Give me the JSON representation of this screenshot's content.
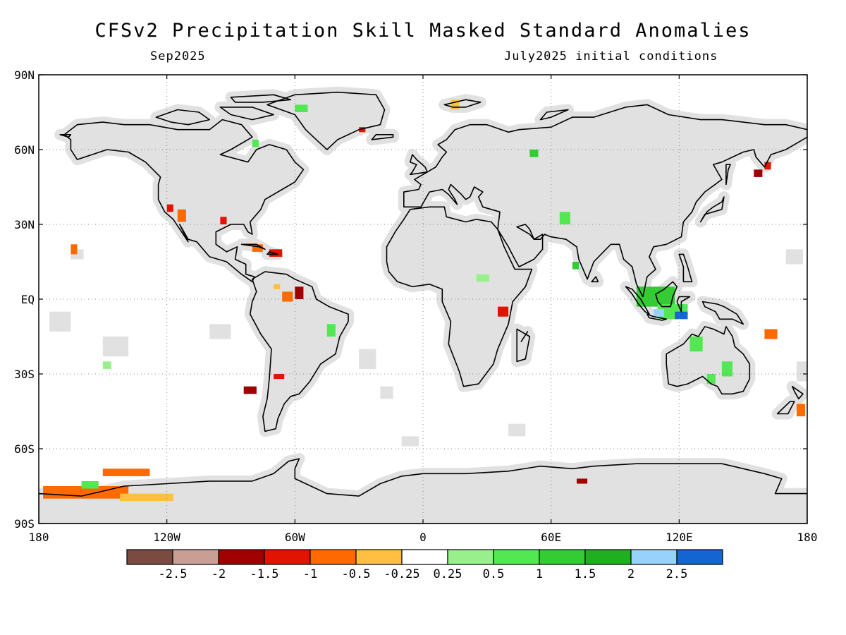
{
  "title": "CFSv2 Precipitation Skill Masked Standard Anomalies",
  "subtitle_left": "Sep2025",
  "subtitle_right": "July2025 initial conditions",
  "map": {
    "projection": "equirectangular",
    "lon_range": [
      -180,
      180
    ],
    "lat_range": [
      -90,
      90
    ],
    "grid": "dotted",
    "skill_mask_color": "#e1e1e1",
    "coastline_color": "#000000",
    "lat_labels": [
      {
        "lat": 90,
        "text": "90N"
      },
      {
        "lat": 60,
        "text": "60N"
      },
      {
        "lat": 30,
        "text": "30N"
      },
      {
        "lat": 0,
        "text": "EQ"
      },
      {
        "lat": -30,
        "text": "30S"
      },
      {
        "lat": -60,
        "text": "60S"
      },
      {
        "lat": -90,
        "text": "90S"
      }
    ],
    "lon_labels": [
      {
        "lon": -180,
        "text": "180"
      },
      {
        "lon": -120,
        "text": "120W"
      },
      {
        "lon": -60,
        "text": "60W"
      },
      {
        "lon": 0,
        "text": "0"
      },
      {
        "lon": 60,
        "text": "60E"
      },
      {
        "lon": 120,
        "text": "120E"
      },
      {
        "lon": 180,
        "text": "180"
      }
    ]
  },
  "colorbar": {
    "colors": [
      "#7b4b42",
      "#c99e95",
      "#a00000",
      "#e01400",
      "#ff6a00",
      "#ffbf40",
      "#ffffff",
      "#98f08c",
      "#52e852",
      "#33cc33",
      "#1eb01e",
      "#96d2fa",
      "#1464d2"
    ],
    "labels": [
      "-2.5",
      "-2",
      "-1.5",
      "-1",
      "-0.5",
      "-0.25",
      "0.25",
      "0.5",
      "1",
      "1.5",
      "2",
      "2.5"
    ]
  },
  "anomaly_regions": [
    {
      "lon": 155,
      "lat": 52,
      "w": 4,
      "h": 3,
      "level": 2
    },
    {
      "lon": 160,
      "lat": 55,
      "w": 3,
      "h": 3,
      "level": 3
    },
    {
      "lon": -115,
      "lat": 36,
      "w": 4,
      "h": 5,
      "level": 4
    },
    {
      "lon": -120,
      "lat": 38,
      "w": 3,
      "h": 3,
      "level": 3
    },
    {
      "lon": -95,
      "lat": 33,
      "w": 3,
      "h": 3,
      "level": 3
    },
    {
      "lon": -165,
      "lat": 22,
      "w": 3,
      "h": 4,
      "level": 4
    },
    {
      "lon": -80,
      "lat": 22,
      "w": 5,
      "h": 3,
      "level": 4
    },
    {
      "lon": -72,
      "lat": 20,
      "w": 6,
      "h": 3,
      "level": 3
    },
    {
      "lon": -60,
      "lat": 5,
      "w": 4,
      "h": 5,
      "level": 2
    },
    {
      "lon": -66,
      "lat": 3,
      "w": 5,
      "h": 4,
      "level": 4
    },
    {
      "lon": -70,
      "lat": 6,
      "w": 3,
      "h": 2,
      "level": 5
    },
    {
      "lon": -84,
      "lat": -35,
      "w": 6,
      "h": 3,
      "level": 2
    },
    {
      "lon": -70,
      "lat": -30,
      "w": 5,
      "h": 2,
      "level": 3
    },
    {
      "lon": 13,
      "lat": 80,
      "w": 4,
      "h": 4,
      "level": 5
    },
    {
      "lon": -60,
      "lat": 78,
      "w": 6,
      "h": 3,
      "level": 8
    },
    {
      "lon": -80,
      "lat": 64,
      "w": 3,
      "h": 3,
      "level": 8
    },
    {
      "lon": -30,
      "lat": 69,
      "w": 3,
      "h": 2,
      "level": 3
    },
    {
      "lon": 50,
      "lat": 60,
      "w": 4,
      "h": 3,
      "level": 9
    },
    {
      "lon": 64,
      "lat": 35,
      "w": 5,
      "h": 5,
      "level": 8
    },
    {
      "lon": 70,
      "lat": 15,
      "w": 3,
      "h": 3,
      "level": 9
    },
    {
      "lon": 100,
      "lat": 5,
      "w": 18,
      "h": 8,
      "level": 9
    },
    {
      "lon": 110,
      "lat": -2,
      "w": 14,
      "h": 6,
      "level": 8
    },
    {
      "lon": 118,
      "lat": -5,
      "w": 6,
      "h": 3,
      "level": 12
    },
    {
      "lon": 108,
      "lat": -4,
      "w": 5,
      "h": 3,
      "level": 11
    },
    {
      "lon": 125,
      "lat": -15,
      "w": 6,
      "h": 6,
      "level": 8
    },
    {
      "lon": 140,
      "lat": -25,
      "w": 5,
      "h": 6,
      "level": 8
    },
    {
      "lon": 133,
      "lat": -30,
      "w": 4,
      "h": 4,
      "level": 8
    },
    {
      "lon": 160,
      "lat": -12,
      "w": 6,
      "h": 4,
      "level": 4
    },
    {
      "lon": 175,
      "lat": -42,
      "w": 4,
      "h": 5,
      "level": 4
    },
    {
      "lon": 35,
      "lat": -3,
      "w": 5,
      "h": 4,
      "level": 3
    },
    {
      "lon": 25,
      "lat": 10,
      "w": 6,
      "h": 3,
      "level": 7
    },
    {
      "lon": -45,
      "lat": -10,
      "w": 4,
      "h": 5,
      "level": 8
    },
    {
      "lon": -178,
      "lat": -75,
      "w": 40,
      "h": 5,
      "level": 4
    },
    {
      "lon": -150,
      "lat": -68,
      "w": 22,
      "h": 3,
      "level": 4
    },
    {
      "lon": -160,
      "lat": -73,
      "w": 8,
      "h": 3,
      "level": 8
    },
    {
      "lon": -142,
      "lat": -78,
      "w": 25,
      "h": 3,
      "level": 5
    },
    {
      "lon": 72,
      "lat": -72,
      "w": 5,
      "h": 2,
      "level": 2
    },
    {
      "lon": -150,
      "lat": -25,
      "w": 4,
      "h": 3,
      "level": 7
    }
  ]
}
